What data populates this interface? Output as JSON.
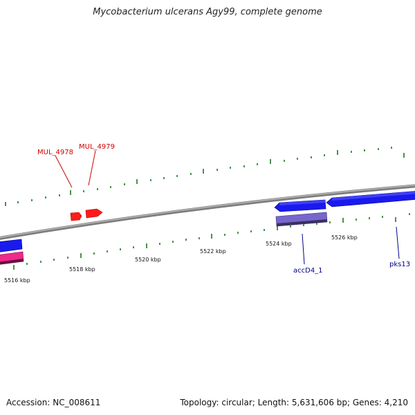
{
  "title": "Mycobacterium ulcerans Agy99, complete genome",
  "footer": {
    "accession": "Accession: NC_008611",
    "summary": "Topology: circular; Length: 5,631,606 bp; Genes: 4,210"
  },
  "scale_labels": [
    "5516 kbp",
    "5518 kbp",
    "5520 kbp",
    "5522 kbp",
    "5524 kbp",
    "5526 kbp"
  ],
  "gene_labels": {
    "mul4978": "MUL_4978",
    "mul4979": "MUL_4979",
    "accd4": "accD4_1",
    "pks13": "pks13"
  },
  "colors": {
    "backbone": "#8a8a8a",
    "tick": "#1a7a1a",
    "forward_gene": "#ff1a1a",
    "reverse_gene": "#1a1aee",
    "purple_gene": "#7766cc",
    "pink_gene": "#ee2a8a",
    "label_red": "#cc0000",
    "label_blue": "#00008b"
  }
}
